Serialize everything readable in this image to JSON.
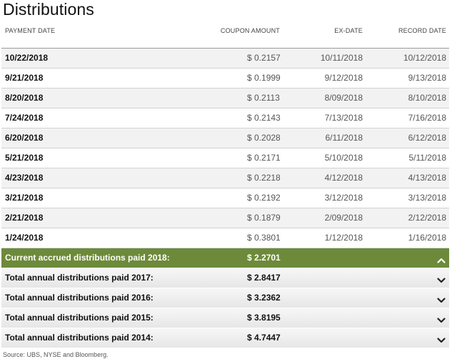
{
  "title": "Distributions",
  "columns": {
    "payment_date": "PAYMENT DATE",
    "coupon_amount": "COUPON AMOUNT",
    "ex_date": "EX-DATE",
    "record_date": "RECORD DATE"
  },
  "rows": [
    {
      "payment": "10/22/2018",
      "amount": "$ 0.2157",
      "ex": "10/11/2018",
      "record": "10/12/2018"
    },
    {
      "payment": "9/21/2018",
      "amount": "$ 0.1999",
      "ex": "9/12/2018",
      "record": "9/13/2018"
    },
    {
      "payment": "8/20/2018",
      "amount": "$ 0.2113",
      "ex": "8/09/2018",
      "record": "8/10/2018"
    },
    {
      "payment": "7/24/2018",
      "amount": "$ 0.2143",
      "ex": "7/13/2018",
      "record": "7/16/2018"
    },
    {
      "payment": "6/20/2018",
      "amount": "$ 0.2028",
      "ex": "6/11/2018",
      "record": "6/12/2018"
    },
    {
      "payment": "5/21/2018",
      "amount": "$ 0.2171",
      "ex": "5/10/2018",
      "record": "5/11/2018"
    },
    {
      "payment": "4/23/2018",
      "amount": "$ 0.2218",
      "ex": "4/12/2018",
      "record": "4/13/2018"
    },
    {
      "payment": "3/21/2018",
      "amount": "$ 0.2192",
      "ex": "3/12/2018",
      "record": "3/13/2018"
    },
    {
      "payment": "2/21/2018",
      "amount": "$ 0.1879",
      "ex": "2/09/2018",
      "record": "2/12/2018"
    },
    {
      "payment": "1/24/2018",
      "amount": "$ 0.3801",
      "ex": "1/12/2018",
      "record": "1/16/2018"
    }
  ],
  "summaries": [
    {
      "label": "Current accrued distributions paid 2018:",
      "amount": "$ 2.2701",
      "expanded": true
    },
    {
      "label": "Total annual distributions paid 2017:",
      "amount": "$ 2.8417",
      "expanded": false
    },
    {
      "label": "Total annual distributions paid 2016:",
      "amount": "$ 3.2362",
      "expanded": false
    },
    {
      "label": "Total annual distributions paid 2015:",
      "amount": "$ 3.8195",
      "expanded": false
    },
    {
      "label": "Total annual distributions paid 2014:",
      "amount": "$ 4.7447",
      "expanded": false
    }
  ],
  "icons": {
    "expanded": "chevron-up-icon",
    "collapsed": "chevron-down-icon"
  },
  "colors": {
    "active_summary": "#6d8a3a"
  },
  "source": "Source: UBS, NYSE and Bloomberg."
}
